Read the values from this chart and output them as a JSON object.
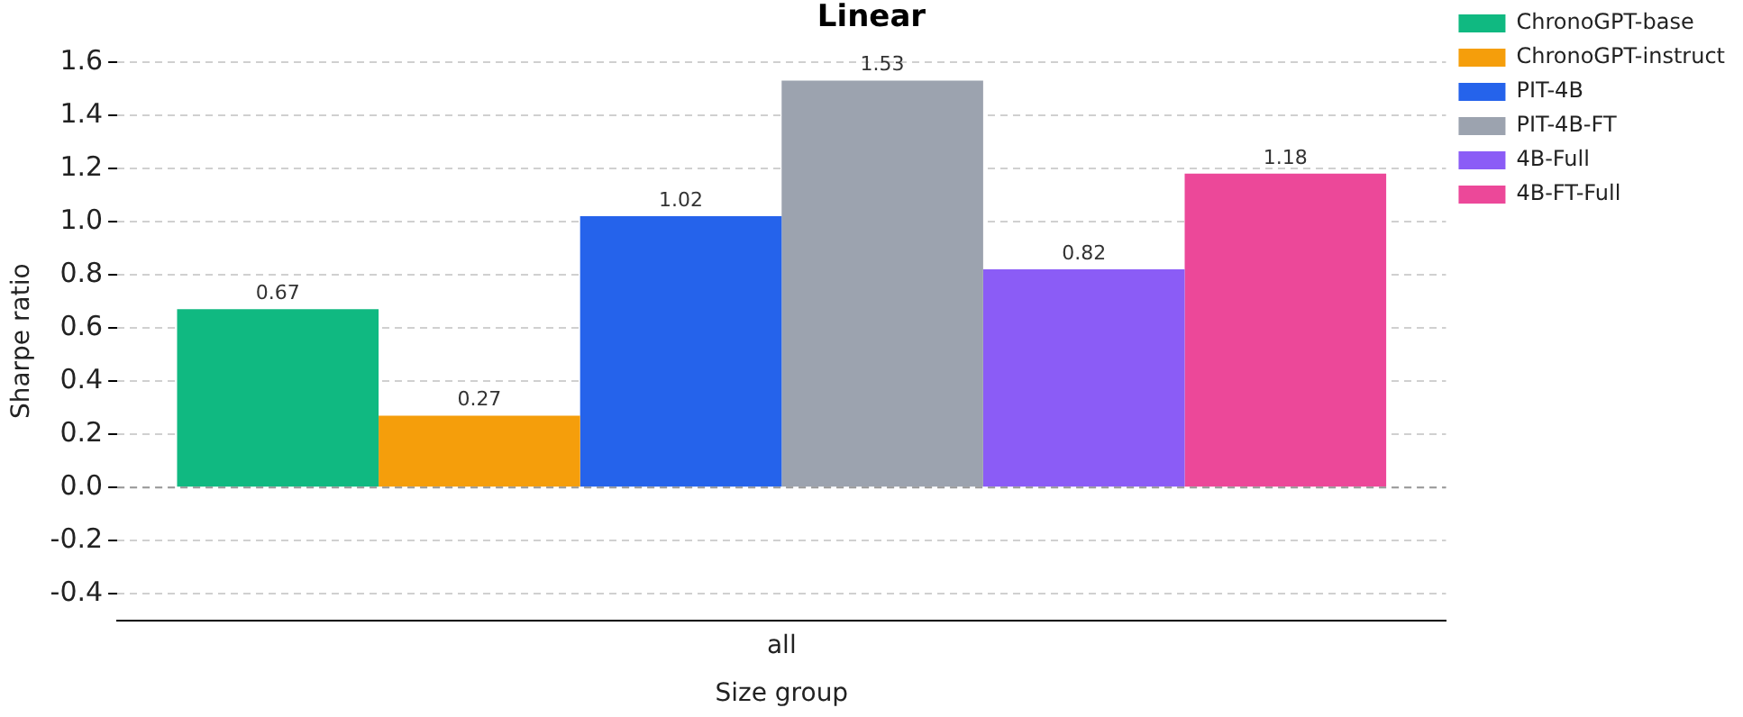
{
  "chart_data": {
    "type": "bar",
    "title": "Linear",
    "xlabel": "Size group",
    "ylabel": "Sharpe ratio",
    "categories": [
      "all"
    ],
    "series": [
      {
        "name": "ChronoGPT-base",
        "color": "#10b981",
        "values": [
          0.67
        ]
      },
      {
        "name": "ChronoGPT-instruct",
        "color": "#f59e0b",
        "values": [
          0.27
        ]
      },
      {
        "name": "PIT-4B",
        "color": "#2563eb",
        "values": [
          1.02
        ]
      },
      {
        "name": "PIT-4B-FT",
        "color": "#9ca3af",
        "values": [
          1.53
        ]
      },
      {
        "name": "4B-Full",
        "color": "#8b5cf6",
        "values": [
          0.82
        ]
      },
      {
        "name": "4B-FT-Full",
        "color": "#ec4899",
        "values": [
          1.18
        ]
      }
    ],
    "ylim": [
      -0.5,
      1.6
    ],
    "yticks": [
      -0.4,
      -0.2,
      {
        "value": 0,
        "label": "0.0"
      },
      0.2,
      0.4,
      0.6,
      0.8,
      {
        "value": 1,
        "label": "1.0"
      },
      1.2,
      1.4,
      1.6
    ],
    "grid": "y",
    "legend": "top right",
    "data_labels": true,
    "ref_lines": [
      {
        "axis": "y",
        "value": 0,
        "color": "#999999",
        "line_style": "dashed"
      }
    ]
  }
}
